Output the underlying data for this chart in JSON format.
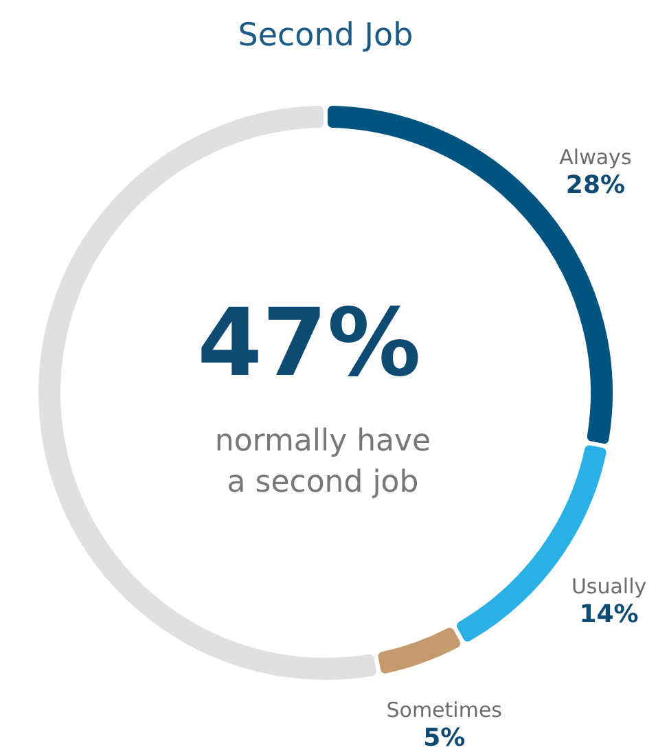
{
  "chart_data": {
    "type": "donut",
    "title": "Second Job",
    "categories": [
      "Always",
      "Usually",
      "Sometimes",
      null
    ],
    "values": [
      28,
      14,
      5,
      53
    ],
    "colors": [
      "#01547f",
      "#2bb0e5",
      "#c59b6e",
      "#e0e0e0"
    ],
    "value_labels": [
      "28%",
      "14%",
      "5%",
      null
    ],
    "annotations": [
      "47%",
      "normally have a second job"
    ]
  }
}
